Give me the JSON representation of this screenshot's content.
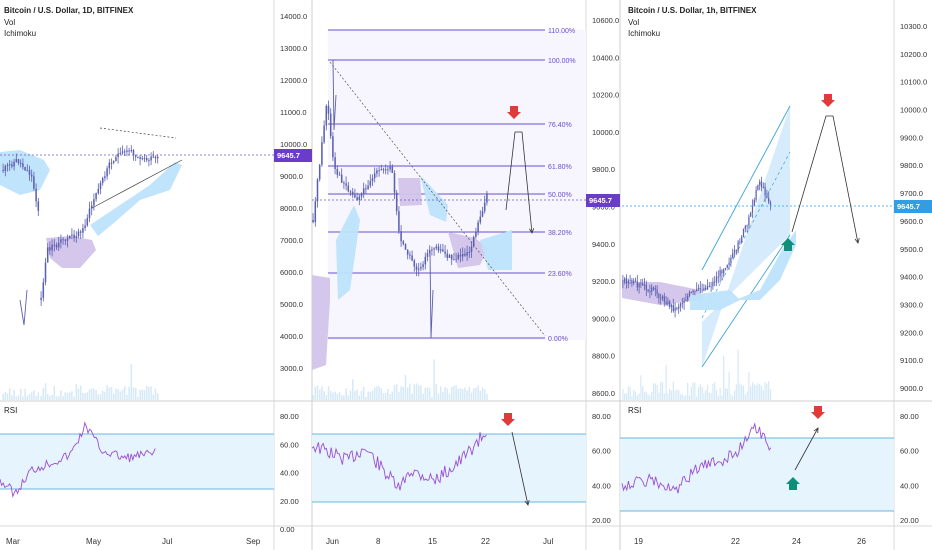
{
  "colors": {
    "candle": "#5b5fb0",
    "cloud_bull": "#bde3fb",
    "cloud_bear": "#d3c4ea",
    "price_line": "#6a5bc8",
    "price_tag_purple": "#6a3dc9",
    "price_tag_blue": "#2e9ee8",
    "rsi_line": "#9b4fd1",
    "rsi_band": "#e6f4fd",
    "rsi_border": "#3aa3d6",
    "fib_line": "#6a4fd0",
    "channel_fill": "#cfe8fb",
    "channel_line": "#3aa3d6",
    "arrow_down": "#e03b3b",
    "arrow_up": "#0d8f7a",
    "axis_text": "#333333"
  },
  "panels": [
    {
      "id": "left",
      "header": {
        "title": "Bitcoin / U.S. Dollar, 1D, BITFINEX",
        "indicators": [
          "Vol",
          "Ichimoku"
        ]
      },
      "price_axis": {
        "ticks": [
          "14000.0",
          "13000.0",
          "12000.0",
          "11000.0",
          "10000.0",
          "9000.0",
          "8000.0",
          "7000.0",
          "6000.0",
          "5000.0",
          "4000.0",
          "3000.0"
        ]
      },
      "price_tag": "9645.7",
      "rsi": {
        "label": "RSI",
        "ticks": [
          "80.00",
          "60.00",
          "40.00",
          "20.00",
          "0.00"
        ]
      },
      "time_axis": [
        "Mar",
        "May",
        "Jul",
        "Sep"
      ]
    },
    {
      "id": "middle",
      "price_axis": {
        "ticks": [
          "10600.0",
          "10400.0",
          "10200.0",
          "10000.0",
          "9800.0",
          "9600.0",
          "9400.0",
          "9200.0",
          "9000.0",
          "8800.0",
          "8600.0"
        ]
      },
      "price_tag": "9645.7",
      "fib_levels": [
        {
          "label": "110.00%"
        },
        {
          "label": "100.00%"
        },
        {
          "label": "76.40%"
        },
        {
          "label": "61.80%"
        },
        {
          "label": "50.00%"
        },
        {
          "label": "38.20%"
        },
        {
          "label": "23.60%"
        },
        {
          "label": "0.00%"
        }
      ],
      "rsi": {
        "ticks": [
          "80.00",
          "60.00",
          "40.00",
          "20.00"
        ]
      },
      "time_axis": [
        "Jun",
        "8",
        "15",
        "22",
        "Jul"
      ]
    },
    {
      "id": "right",
      "header": {
        "title": "Bitcoin / U.S. Dollar, 1h, BITFINEX",
        "indicators": [
          "Vol",
          "Ichimoku"
        ]
      },
      "price_axis": {
        "ticks": [
          "10300.0",
          "10200.0",
          "10100.0",
          "10000.0",
          "9900.0",
          "9800.0",
          "9700.0",
          "9600.0",
          "9500.0",
          "9400.0",
          "9300.0",
          "9200.0",
          "9100.0",
          "9000.0"
        ]
      },
      "price_tag": "9645.7",
      "rsi": {
        "label": "RSI",
        "ticks": [
          "80.00",
          "60.00",
          "40.00",
          "20.00"
        ]
      },
      "time_axis": [
        "19",
        "22",
        "24",
        "26"
      ]
    }
  ]
}
